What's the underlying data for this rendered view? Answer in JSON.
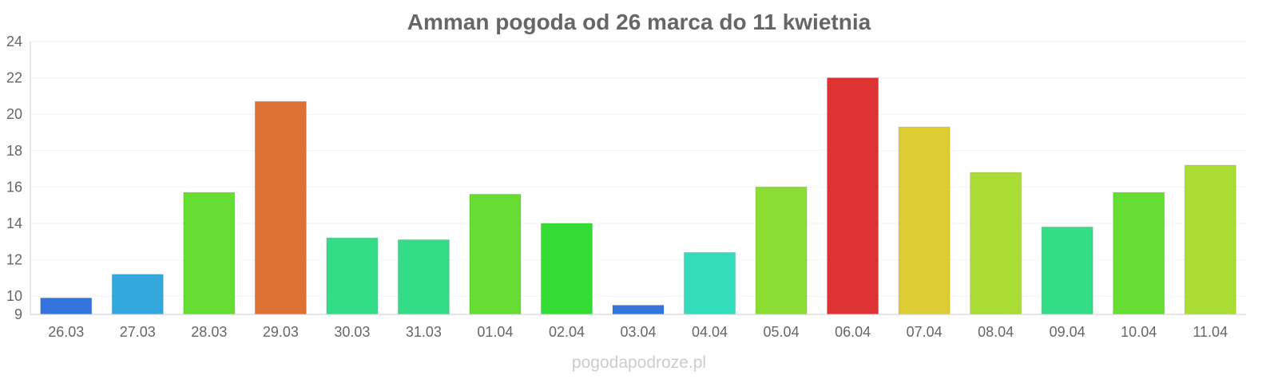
{
  "chart_data": {
    "type": "bar",
    "title": "Amman pogoda od 26 marca do 11 kwietnia",
    "xlabel": "",
    "ylabel": "",
    "ylim": [
      9,
      24
    ],
    "yticks": [
      9,
      10,
      12,
      14,
      16,
      18,
      20,
      22,
      24
    ],
    "grid": true,
    "categories": [
      "26.03",
      "27.03",
      "28.03",
      "29.03",
      "30.03",
      "31.03",
      "01.04",
      "02.04",
      "03.04",
      "04.04",
      "05.04",
      "06.04",
      "07.04",
      "08.04",
      "09.04",
      "10.04",
      "11.04"
    ],
    "values": [
      9.9,
      11.2,
      15.7,
      20.7,
      13.2,
      13.1,
      15.6,
      14.0,
      9.5,
      12.4,
      16.0,
      22.0,
      19.3,
      16.8,
      13.8,
      15.7,
      17.2
    ],
    "colors": [
      "#3375dd",
      "#33a8dd",
      "#66dd33",
      "#dd7033",
      "#33dd88",
      "#33dd88",
      "#66dd33",
      "#33dd33",
      "#3375dd",
      "#33ddbb",
      "#8cdd33",
      "#dd3333",
      "#ddcc33",
      "#aadd33",
      "#33dd88",
      "#66dd33",
      "#aadd33"
    ]
  },
  "watermark": "pogodapodroze.pl"
}
